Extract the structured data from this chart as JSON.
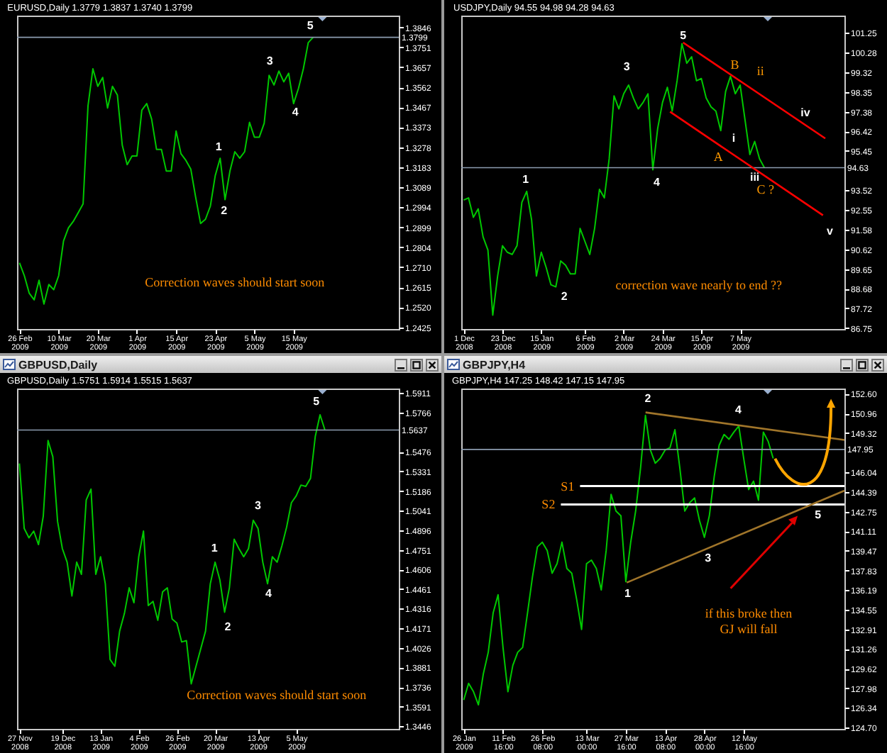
{
  "chart_data": [
    {
      "type": "line",
      "title": "EURUSD,Daily 1.3779 1.3837 1.3740 1.3799",
      "ylim": [
        1.2417,
        1.3902
      ],
      "categories": [
        "26 Feb 2009",
        null,
        null,
        null,
        null,
        null,
        null,
        null,
        "10 Mar 2009",
        null,
        null,
        null,
        null,
        null,
        null,
        null,
        "20 Mar 2009",
        null,
        null,
        null,
        null,
        null,
        null,
        null,
        "1 Apr 2009",
        null,
        null,
        null,
        null,
        null,
        null,
        null,
        "15 Apr 2009",
        null,
        null,
        null,
        null,
        null,
        null,
        null,
        "23 Apr 2009",
        null,
        null,
        null,
        null,
        null,
        null,
        null,
        "5 May 2009",
        null,
        null,
        null,
        null,
        null,
        null,
        null,
        "15 May 2009",
        null,
        null,
        null,
        null,
        null,
        null,
        null,
        null,
        null,
        null,
        null,
        null,
        null,
        null,
        null,
        null,
        null,
        null,
        null,
        null,
        null
      ],
      "yticks": [
        1.3846,
        1.3751,
        1.3657,
        1.3562,
        1.3467,
        1.3373,
        1.3278,
        1.3183,
        1.3089,
        1.2994,
        1.2899,
        1.2804,
        {
          "value": 1.271,
          "label": "1.2710"
        },
        1.2615,
        {
          "value": 1.252,
          "label": "1.2520"
        },
        1.2425
      ],
      "series": [
        {
          "color": "#00c800",
          "values": [
            1.2731,
            1.2669,
            1.2586,
            1.2555,
            1.2648,
            1.2535,
            1.2628,
            1.2603,
            1.2669,
            1.2834,
            1.2896,
            1.2927,
            1.2968,
            1.301,
            1.3474,
            1.365,
            1.3567,
            1.3609,
            1.3464,
            1.3567,
            1.3526,
            1.3288,
            1.3196,
            1.3237,
            1.3237,
            1.3454,
            1.3485,
            1.3412,
            1.3268,
            1.3268,
            1.3165,
            1.3165,
            1.3355,
            1.3247,
            1.3216,
            1.3175,
            1.3041,
            1.2917,
            1.2937,
            1.2999,
            1.3144,
            1.3226,
            1.303,
            1.3165,
            1.3257,
            1.3226,
            1.3257,
            1.3396,
            1.3326,
            1.3326,
            1.3392,
            1.3619,
            1.3573,
            1.3639,
            1.3588,
            1.3629,
            1.3485,
            1.3557,
            1.365,
            1.3774,
            1.3799,
            null,
            null,
            null,
            null,
            null,
            null,
            null,
            null,
            null,
            null,
            null,
            null,
            null,
            null,
            null,
            null,
            null
          ]
        }
      ],
      "ref_lines": [
        {
          "axis": "y",
          "value": 1.3799,
          "label": "1.3799",
          "color": "#8c9cb0"
        }
      ],
      "annotations": [
        "1",
        "2",
        "3",
        "4",
        "5",
        "Correction waves should start soon"
      ]
    },
    {
      "type": "line",
      "title": "USDJPY,Daily 94.55 94.98 94.28 94.63",
      "ylim": [
        86.71,
        102.1
      ],
      "categories": [
        "1 Dec 2008",
        null,
        null,
        null,
        null,
        null,
        null,
        null,
        "23 Dec 2008",
        null,
        null,
        null,
        null,
        null,
        null,
        null,
        "15 Jan 2009",
        null,
        null,
        null,
        null,
        null,
        null,
        null,
        null,
        "6 Feb 2009",
        null,
        null,
        null,
        null,
        null,
        null,
        null,
        "2 Mar 2009",
        null,
        null,
        null,
        null,
        null,
        null,
        null,
        "24 Mar 2009",
        null,
        null,
        null,
        null,
        null,
        null,
        null,
        "15 Apr 2009",
        null,
        null,
        null,
        null,
        null,
        null,
        null,
        "7 May 2009",
        null,
        null,
        null,
        null,
        null,
        null,
        null,
        null,
        null,
        null,
        null,
        null,
        null,
        null,
        null,
        null,
        null,
        null,
        null,
        null,
        null
      ],
      "yticks": [
        101.25,
        100.28,
        99.32,
        98.35,
        97.38,
        96.42,
        95.45,
        93.52,
        92.55,
        91.58,
        90.62,
        89.65,
        88.68,
        87.72,
        86.75
      ],
      "series": [
        {
          "color": "#00c800",
          "values": [
            93.04,
            93.15,
            92.19,
            92.61,
            91.23,
            90.59,
            87.39,
            89.31,
            90.8,
            90.48,
            90.37,
            90.8,
            92.93,
            93.47,
            92.08,
            89.31,
            90.48,
            89.74,
            88.88,
            88.78,
            90.05,
            89.84,
            89.42,
            89.42,
            91.65,
            91.01,
            90.37,
            91.65,
            93.57,
            93.15,
            95.07,
            98.16,
            97.52,
            98.26,
            98.69,
            98.05,
            97.52,
            97.84,
            98.26,
            94.53,
            96.56,
            97.84,
            98.58,
            97.41,
            98.9,
            100.72,
            99.76,
            100.08,
            98.9,
            99.01,
            98.05,
            97.62,
            97.41,
            96.45,
            98.37,
            99.12,
            98.26,
            98.69,
            96.99,
            95.28,
            95.92,
            95.07,
            94.63,
            null,
            null,
            null,
            null,
            null,
            null,
            null,
            null,
            null,
            null,
            null,
            null,
            null,
            null,
            null,
            null
          ]
        }
      ],
      "ref_lines": [
        {
          "axis": "y",
          "value": 94.63,
          "label": "94.63",
          "color": "#8c9cb0"
        }
      ],
      "annotations": [
        "1",
        "2",
        "3",
        "4",
        "5",
        "A",
        "B",
        "C ?",
        "i",
        "ii",
        "iii",
        "iv",
        "v",
        "correction wave nearly to end ??"
      ]
    },
    {
      "type": "line",
      "title": "GBPUSD,Daily",
      "subtitle": "GBPUSD,Daily 1.5751 1.5914 1.5515 1.5637",
      "ylim": [
        1.3427,
        1.5944
      ],
      "categories": [
        "27 Nov 2008",
        null,
        null,
        null,
        null,
        null,
        null,
        null,
        null,
        "19 Dec 2008",
        null,
        null,
        null,
        null,
        null,
        null,
        null,
        "13 Jan 2009",
        null,
        null,
        null,
        null,
        null,
        null,
        null,
        "4 Feb 2009",
        null,
        null,
        null,
        null,
        null,
        null,
        null,
        "26 Feb 2009",
        null,
        null,
        null,
        null,
        null,
        null,
        null,
        "20 Mar 2009",
        null,
        null,
        null,
        null,
        null,
        null,
        null,
        null,
        "13 Apr 2009",
        null,
        null,
        null,
        null,
        null,
        null,
        null,
        "5 May 2009",
        null,
        null,
        null,
        null,
        null,
        null,
        null,
        null,
        null,
        null,
        null,
        null,
        null,
        null,
        null,
        null,
        null,
        null,
        null,
        null,
        null
      ],
      "yticks": [
        1.5911,
        1.5766,
        1.5476,
        1.5331,
        1.5186,
        1.5041,
        1.4896,
        1.4751,
        1.4606,
        1.4461,
        1.4316,
        1.4171,
        1.4026,
        1.3881,
        1.3736,
        1.3591,
        1.3446
      ],
      "series": [
        {
          "color": "#00c800",
          "values": [
            1.539,
            1.491,
            1.484,
            1.489,
            1.479,
            1.5,
            1.556,
            1.544,
            1.496,
            1.476,
            1.466,
            1.441,
            1.466,
            1.457,
            1.512,
            1.52,
            1.457,
            1.47,
            1.45,
            1.394,
            1.389,
            1.415,
            1.428,
            1.447,
            1.436,
            1.47,
            1.489,
            1.434,
            1.437,
            1.423,
            1.444,
            1.447,
            1.424,
            1.421,
            1.407,
            1.408,
            1.376,
            1.389,
            1.402,
            1.415,
            1.45,
            1.466,
            1.453,
            1.429,
            1.447,
            1.483,
            1.476,
            1.47,
            1.476,
            1.497,
            1.491,
            1.466,
            1.45,
            1.47,
            1.466,
            1.478,
            1.492,
            1.51,
            1.515,
            1.523,
            1.522,
            1.528,
            1.559,
            1.575,
            1.564,
            null,
            null,
            null,
            null,
            null,
            null,
            null,
            null,
            null,
            null,
            null,
            null,
            null,
            null,
            null
          ]
        }
      ],
      "ref_lines": [
        {
          "axis": "y",
          "value": 1.5637,
          "label": "1.5637",
          "color": "#8c9cb0"
        }
      ],
      "annotations": [
        "1",
        "2",
        "3",
        "4",
        "5",
        "Correction waves should start soon"
      ]
    },
    {
      "type": "line",
      "title": "GBPJPY,H4",
      "subtitle": "GBPJPY,H4 147.25 148.42 147.15 147.95",
      "ylim": [
        124.59,
        153.04
      ],
      "categories": [
        "26 Jan 2009",
        null,
        null,
        null,
        null,
        null,
        null,
        null,
        "11 Feb 16:00",
        null,
        null,
        null,
        null,
        null,
        null,
        null,
        "26 Feb 08:00",
        null,
        null,
        null,
        null,
        null,
        null,
        null,
        null,
        "13 Mar 00:00",
        null,
        null,
        null,
        null,
        null,
        null,
        null,
        "27 Mar 16:00",
        null,
        null,
        null,
        null,
        null,
        null,
        null,
        "13 Apr 08:00",
        null,
        null,
        null,
        null,
        null,
        null,
        null,
        "28 Apr 00:00",
        null,
        null,
        null,
        null,
        null,
        null,
        null,
        "12 May 16:00",
        null,
        null,
        null,
        null,
        null,
        null,
        null,
        null,
        null,
        null,
        null,
        null,
        null,
        null,
        null,
        null,
        null,
        null,
        null,
        null
      ],
      "yticks": [
        {
          "value": 152.6,
          "label": "152.60"
        },
        150.96,
        149.32,
        146.04,
        144.39,
        142.75,
        141.11,
        139.47,
        137.83,
        136.19,
        134.55,
        132.91,
        131.26,
        129.62,
        127.98,
        126.34,
        {
          "value": 124.7,
          "label": "124.70"
        }
      ],
      "series": [
        {
          "color": "#00c800",
          "values": [
            127.0,
            128.4,
            127.7,
            126.6,
            129.2,
            131.0,
            134.3,
            135.8,
            131.4,
            127.7,
            129.9,
            131.0,
            131.4,
            134.3,
            137.3,
            139.8,
            140.2,
            139.5,
            137.6,
            138.4,
            140.2,
            138.0,
            137.6,
            135.4,
            132.9,
            138.4,
            138.7,
            138.0,
            136.2,
            139.5,
            144.2,
            142.8,
            142.4,
            136.9,
            140.2,
            142.8,
            146.4,
            150.8,
            147.9,
            146.8,
            147.2,
            147.9,
            148.1,
            149.6,
            146.4,
            142.8,
            143.5,
            143.9,
            142.0,
            140.6,
            142.4,
            145.7,
            148.3,
            149.2,
            148.8,
            149.4,
            149.9,
            147.2,
            144.6,
            145.3,
            143.7,
            149.4,
            148.6,
            147.2,
            null,
            null,
            null,
            null,
            null,
            null,
            null,
            null,
            null,
            null,
            null,
            null,
            null,
            null
          ]
        }
      ],
      "ref_lines": [
        {
          "axis": "y",
          "value": 147.95,
          "label": "147.95",
          "color": "#8c9cb0"
        },
        {
          "axis": "y",
          "value": 144.89,
          "label": "S1",
          "color": "#ffffff"
        },
        {
          "axis": "y",
          "value": 143.35,
          "label": "S2",
          "color": "#ffffff"
        }
      ],
      "annotations": [
        "1",
        "2",
        "3",
        "4",
        "5",
        "if this broke then\nGJ will fall"
      ]
    }
  ]
}
